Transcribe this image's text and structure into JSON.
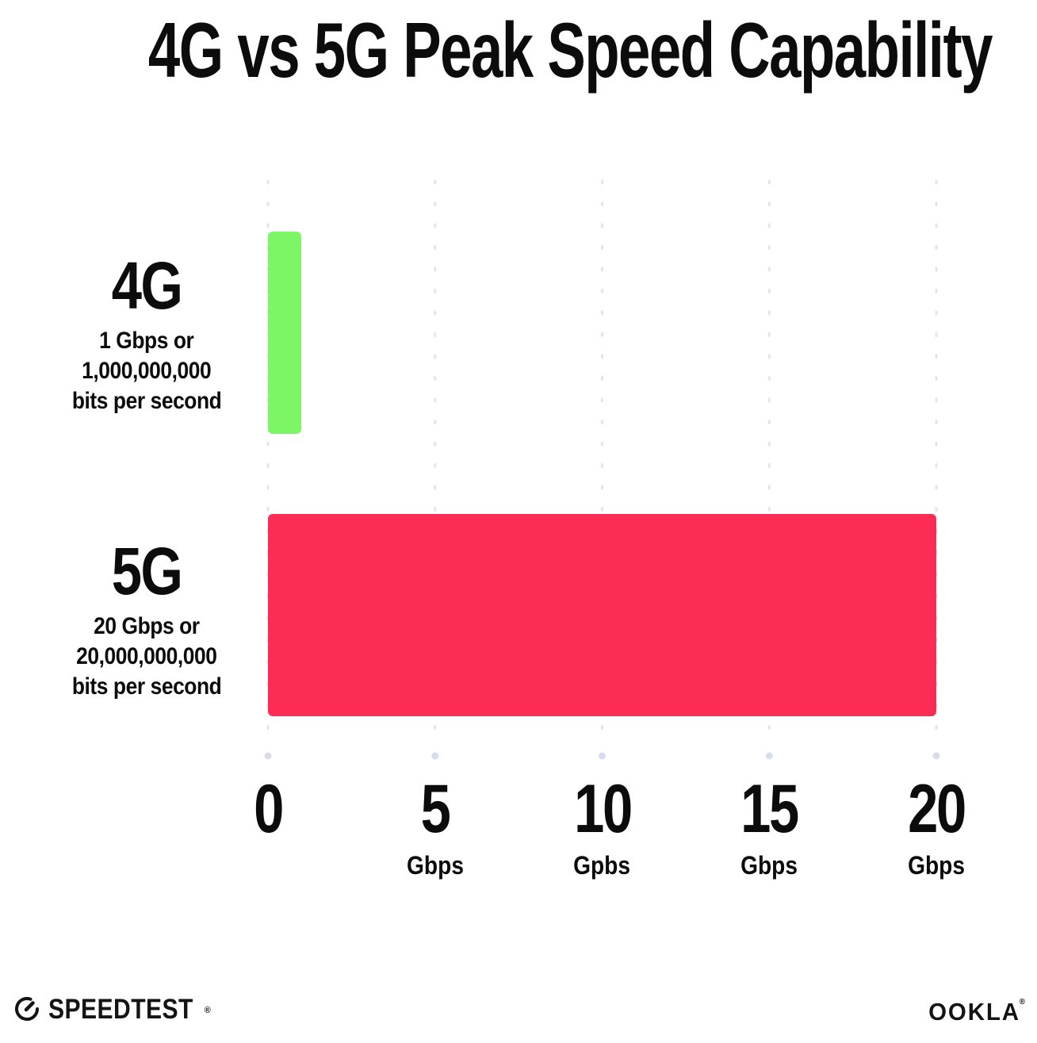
{
  "title": "4G vs 5G Peak Speed Capability",
  "chart_data": {
    "type": "bar",
    "orientation": "horizontal",
    "title": "4G vs 5G Peak Speed Capability",
    "categories": [
      "4G",
      "5G"
    ],
    "values": [
      1,
      20
    ],
    "bar_colors": [
      "#7df666",
      "#fd2c55"
    ],
    "category_sublabels": [
      [
        "1 Gbps or",
        "1,000,000,000",
        "bits per second"
      ],
      [
        "20 Gbps or",
        "20,000,000,000",
        "bits per second"
      ]
    ],
    "xlabel": "",
    "ylabel": "",
    "xlim": [
      0,
      20
    ],
    "x_ticks": [
      {
        "value": 0,
        "label": "0",
        "unit": ""
      },
      {
        "value": 5,
        "label": "5",
        "unit": "Gbps"
      },
      {
        "value": 10,
        "label": "10",
        "unit": "Gpbs"
      },
      {
        "value": 15,
        "label": "15",
        "unit": "Gbps"
      },
      {
        "value": 20,
        "label": "20",
        "unit": "Gbps"
      }
    ],
    "grid": "vertical-dotted",
    "legend": "none"
  },
  "footer": {
    "speedtest_label": "SPEEDTEST",
    "speedtest_trademark": "®",
    "ookla_label": "OOKLA",
    "ookla_trademark": "®"
  },
  "colors": {
    "bar_4g": "#7df666",
    "bar_5g": "#fd2c55",
    "gridline": "#e2e4f0",
    "gridline_end_dot": "#d9ddeb",
    "text": "#0c0c0c",
    "background": "#ffffff"
  }
}
